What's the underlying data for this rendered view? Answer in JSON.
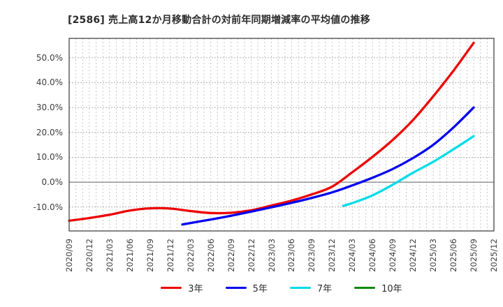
{
  "title": "[2586]  売上高12か月移動合計の対前年同期増減率の平均値の推移",
  "chart_data": {
    "type": "line",
    "title": "[2586]  売上高12か月移動合計の対前年同期増減率の平均値の推移",
    "x_tick_labels": [
      "2020/09",
      "2020/12",
      "2021/03",
      "2021/06",
      "2021/09",
      "2021/12",
      "2022/03",
      "2022/06",
      "2022/09",
      "2022/12",
      "2023/03",
      "2023/06",
      "2023/09",
      "2023/12",
      "2024/03",
      "2024/06",
      "2024/09",
      "2024/12",
      "2025/03",
      "2025/06",
      "2025/09",
      "2025/12"
    ],
    "y_ticks": [
      50,
      40,
      30,
      20,
      10,
      0,
      -10
    ],
    "y_tick_labels": [
      "50.0%",
      "40.0%",
      "30.0%",
      "20.0%",
      "10.0%",
      "0.0%",
      "-10.0%"
    ],
    "ylim": [
      -19.6,
      57.8
    ],
    "grid": "dotted gray: vertical every month, horizontal every 10%; solid line at 0%",
    "zero_line": true,
    "legend_position": "bottom-center",
    "colors": {
      "3年": "#ee0000",
      "5年": "#0000ee",
      "7年": "#00dce8",
      "10年": "#0c8a0c"
    },
    "series": [
      {
        "name": "3年",
        "color": "#ee0000",
        "points": [
          [
            0,
            -15.5
          ],
          [
            1,
            -14.4
          ],
          [
            2,
            -13.1
          ],
          [
            3,
            -11.4
          ],
          [
            4,
            -10.5
          ],
          [
            5,
            -10.6
          ],
          [
            6,
            -11.6
          ],
          [
            7,
            -12.4
          ],
          [
            8,
            -12.3
          ],
          [
            9,
            -11.3
          ],
          [
            10,
            -9.4
          ],
          [
            11,
            -7.4
          ],
          [
            12,
            -4.9
          ],
          [
            13,
            -1.8
          ],
          [
            14,
            4.0
          ],
          [
            15,
            10.2
          ],
          [
            16,
            17.0
          ],
          [
            17,
            25.0
          ],
          [
            18,
            34.5
          ],
          [
            19,
            44.8
          ],
          [
            20,
            56.0
          ]
        ],
        "note": "quarter-index from 2020/09, value in %"
      },
      {
        "name": "5年",
        "color": "#0000ee",
        "points": [
          [
            5.6,
            -17.0
          ],
          [
            6,
            -16.4
          ],
          [
            7,
            -15.0
          ],
          [
            8,
            -13.5
          ],
          [
            9,
            -11.8
          ],
          [
            10,
            -10.1
          ],
          [
            11,
            -8.3
          ],
          [
            12,
            -6.3
          ],
          [
            13,
            -4.1
          ],
          [
            14,
            -1.3
          ],
          [
            15,
            1.8
          ],
          [
            16,
            5.3
          ],
          [
            17,
            9.7
          ],
          [
            18,
            15.0
          ],
          [
            19,
            22.0
          ],
          [
            20,
            30.0
          ]
        ],
        "note": "starts ~2022/02, ends 2025/09"
      },
      {
        "name": "7年",
        "color": "#00dce8",
        "points": [
          [
            13.55,
            -9.5
          ],
          [
            14,
            -8.4
          ],
          [
            15,
            -5.3
          ],
          [
            16,
            -1.0
          ],
          [
            17,
            3.8
          ],
          [
            18,
            8.2
          ],
          [
            19,
            13.2
          ],
          [
            20,
            18.5
          ]
        ],
        "note": "starts ~2024/02, ends 2025/09"
      },
      {
        "name": "10年",
        "color": "#0c8a0c",
        "points": [],
        "note": "in legend but no data plotted"
      }
    ],
    "legend": [
      "3年",
      "5年",
      "7年",
      "10年"
    ]
  }
}
